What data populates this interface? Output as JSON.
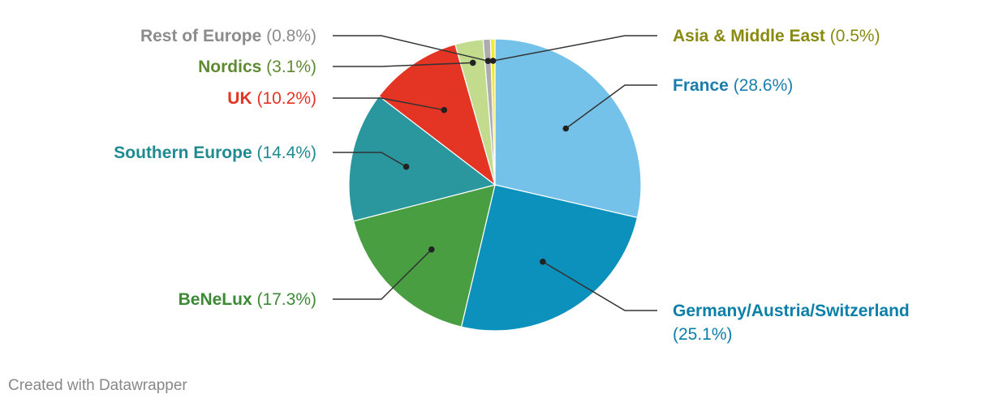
{
  "chart_data": {
    "type": "pie",
    "slices": [
      {
        "name": "France",
        "value": 28.6,
        "display": "(28.6%)",
        "color": "#74c2ea",
        "text_color": "#1c7dad"
      },
      {
        "name": "Germany/Austria/Switzerland",
        "value": 25.1,
        "display": "(25.1%)",
        "color": "#0b91bc",
        "text_color": "#0b7fa8"
      },
      {
        "name": "BeNeLux",
        "value": 17.3,
        "display": "(17.3%)",
        "color": "#4a9e42",
        "text_color": "#3d8a36"
      },
      {
        "name": "Southern Europe",
        "value": 14.4,
        "display": "(14.4%)",
        "color": "#2a979f",
        "text_color": "#1f8a8f"
      },
      {
        "name": "UK",
        "value": 10.2,
        "display": "(10.2%)",
        "color": "#e33424",
        "text_color": "#e33424"
      },
      {
        "name": "Nordics",
        "value": 3.1,
        "display": "(3.1%)",
        "color": "#c3db8d",
        "text_color": "#5e8a32"
      },
      {
        "name": "Rest of Europe",
        "value": 0.8,
        "display": "(0.8%)",
        "color": "#adadad",
        "text_color": "#8c8c8c"
      },
      {
        "name": "Asia & Middle East",
        "value": 0.5,
        "display": "(0.5%)",
        "color": "#f6ea2c",
        "text_color": "#8a8a10"
      }
    ]
  },
  "footer": {
    "credit": "Created with Datawrapper"
  }
}
